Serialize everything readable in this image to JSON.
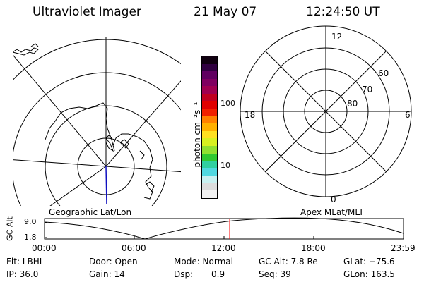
{
  "header": {
    "instrument": "Ultraviolet Imager",
    "date": "21 May 07",
    "time": "12:24:50 UT"
  },
  "colorbar": {
    "unit_label": "photon cm⁻²s⁻¹",
    "tick_100": "100",
    "tick_10": "10",
    "colors": [
      "#f2f2f2",
      "#dcdcdc",
      "#c8f0f0",
      "#50d8e0",
      "#30d0a0",
      "#30c830",
      "#90e030",
      "#d8f020",
      "#ffe020",
      "#ffb000",
      "#ff8000",
      "#f02000",
      "#e00000",
      "#c00020",
      "#a00050",
      "#800060",
      "#600060",
      "#300040",
      "#100010"
    ]
  },
  "left_panel": {
    "caption": "Geographic Lat/Lon"
  },
  "right_panel": {
    "caption": "Apex MLat/MLT",
    "mlt_labels": {
      "top": "12",
      "left": "18",
      "right": "6",
      "bottom": "0"
    },
    "lat_labels": [
      "60",
      "70",
      "80"
    ]
  },
  "timeline": {
    "y_axis_label": "GC Alt",
    "y_ticks": [
      "9.0",
      "1.8"
    ],
    "x_ticks": [
      "00:00",
      "06:00",
      "12:00",
      "18:00",
      "23:59"
    ],
    "marker_color": "#ff0000"
  },
  "info": {
    "flt": "Flt: LBHL",
    "ip": "IP: 36.0",
    "door": "Door: Open",
    "gain": "Gain: 14",
    "mode": "Mode: Normal",
    "dsp_label": "Dsp:",
    "dsp_value": "0.9",
    "gc_alt": "GC Alt: 7.8 Re",
    "seq": "Seq: 39",
    "glat": "GLat: −75.6",
    "glon": "GLon: 163.5"
  }
}
